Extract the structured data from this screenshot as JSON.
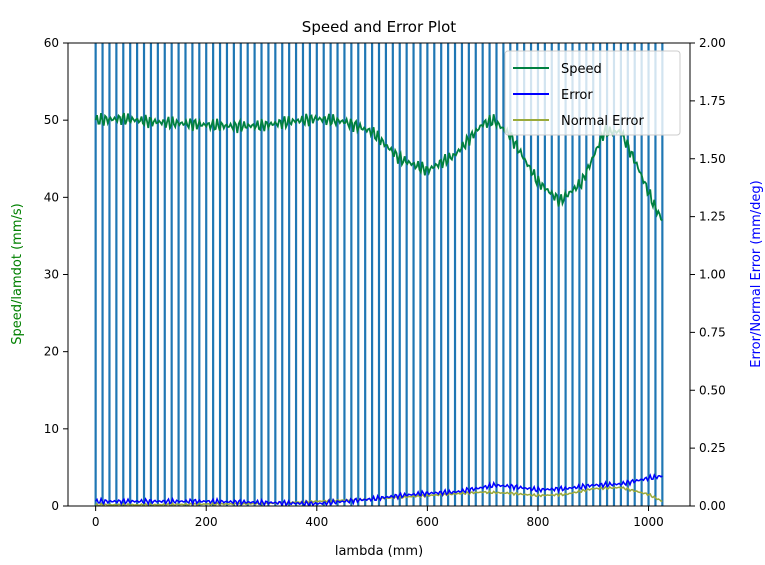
{
  "chart_data": {
    "type": "line",
    "title": "Speed and Error Plot",
    "xlabel": "lambda (mm)",
    "ylabel_left": "Speed/lamdot (mm/s)",
    "ylabel_right": "Error/Normal Error (mm/deg)",
    "xlim": [
      -50,
      1075
    ],
    "ylim_left": [
      0,
      60
    ],
    "ylim_right": [
      0,
      2.0
    ],
    "x_ticks": [
      0,
      200,
      400,
      600,
      800,
      1000
    ],
    "y_left_ticks": [
      0,
      10,
      20,
      30,
      40,
      50,
      60
    ],
    "y_right_ticks": [
      "0.00",
      "0.25",
      "0.50",
      "0.75",
      "1.00",
      "1.25",
      "1.50",
      "1.75",
      "2.00"
    ],
    "legend_position": "top-right",
    "vertical_lines": {
      "color": "#1f77b4",
      "start": 0,
      "end": 1025,
      "step": 12.5
    },
    "series": [
      {
        "name": "Speed",
        "axis": "left",
        "color": "#008040",
        "x": [
          0,
          50,
          100,
          150,
          200,
          250,
          300,
          350,
          400,
          450,
          500,
          550,
          600,
          650,
          700,
          720,
          750,
          800,
          840,
          880,
          920,
          950,
          980,
          1010,
          1025
        ],
        "values": [
          50,
          50.2,
          49.8,
          49.6,
          49.4,
          49.2,
          49.3,
          49.8,
          50.2,
          49.8,
          48.5,
          45.0,
          43.5,
          45.5,
          49.5,
          50.0,
          48.0,
          42.0,
          39.5,
          42.0,
          48.5,
          48.5,
          44.0,
          39.0,
          37.0
        ],
        "oscillation": 0.9
      },
      {
        "name": "Error",
        "axis": "right",
        "color": "#0000ff",
        "x": [
          0,
          100,
          200,
          300,
          400,
          500,
          550,
          600,
          650,
          700,
          720,
          750,
          800,
          850,
          900,
          950,
          1000,
          1025
        ],
        "values": [
          0.02,
          0.02,
          0.02,
          0.015,
          0.01,
          0.03,
          0.045,
          0.055,
          0.06,
          0.08,
          0.09,
          0.085,
          0.07,
          0.075,
          0.09,
          0.095,
          0.12,
          0.13
        ],
        "oscillation": 0.012
      },
      {
        "name": "Normal Error",
        "axis": "right",
        "color": "#9aaa3a",
        "x": [
          0,
          100,
          200,
          300,
          400,
          500,
          600,
          700,
          750,
          800,
          850,
          900,
          950,
          1000,
          1025
        ],
        "values": [
          0.005,
          0.005,
          0.008,
          0.01,
          0.02,
          0.03,
          0.045,
          0.06,
          0.055,
          0.045,
          0.05,
          0.075,
          0.08,
          0.05,
          0.02
        ],
        "oscillation": 0.006
      }
    ]
  }
}
